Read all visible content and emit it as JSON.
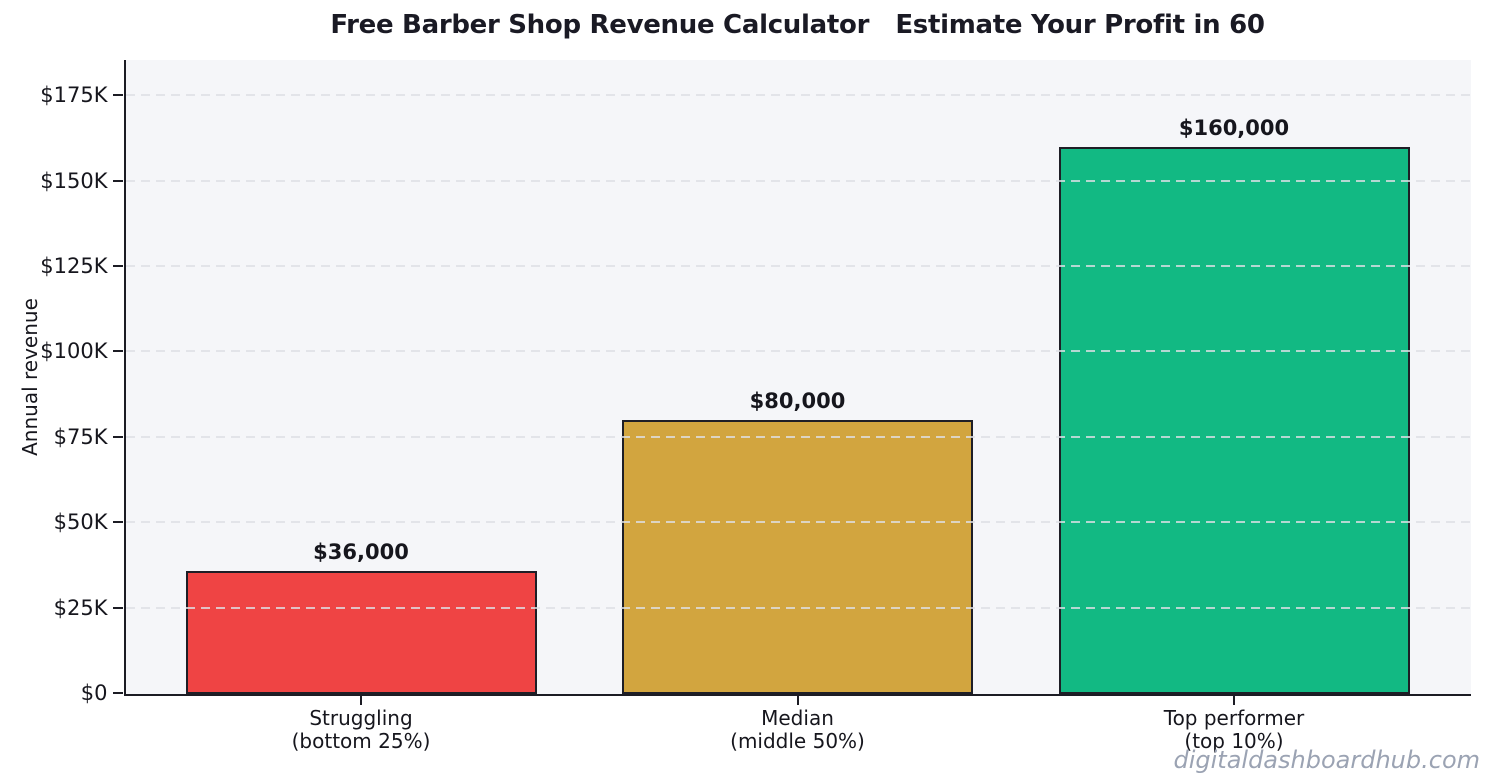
{
  "watermark": "digitaldashboardhub.com",
  "chart_data": {
    "type": "bar",
    "title": "Free Barber Shop Revenue Calculator   Estimate Your Profit in 60",
    "xlabel": "",
    "ylabel": "Annual revenue",
    "categories": [
      "Struggling\n(bottom 25%)",
      "Median\n(middle 50%)",
      "Top performer\n(top 10%)"
    ],
    "values": [
      36000,
      80000,
      160000
    ],
    "value_labels": [
      "$36,000",
      "$80,000",
      "$160,000"
    ],
    "yticks": {
      "values": [
        0,
        25000,
        50000,
        75000,
        100000,
        125000,
        150000,
        175000
      ],
      "labels": [
        "$0",
        "$25K",
        "$50K",
        "$75K",
        "$100K",
        "$125K",
        "$150K",
        "$175K"
      ]
    },
    "ylim": [
      0,
      185300
    ],
    "grid": {
      "axis": "y",
      "style": "dashed",
      "drawn_above_bars": true
    },
    "legend": null,
    "colors": {
      "bars": [
        "#ef4444",
        "#d2a53f",
        "#12b983"
      ],
      "bar_edge": "#1e1e26",
      "plot_background": "#f5f6f9",
      "gridline": "#e4e6ea",
      "axis": "#1c1c24",
      "text": "#16161d",
      "watermark": "#9ba3b3"
    }
  }
}
